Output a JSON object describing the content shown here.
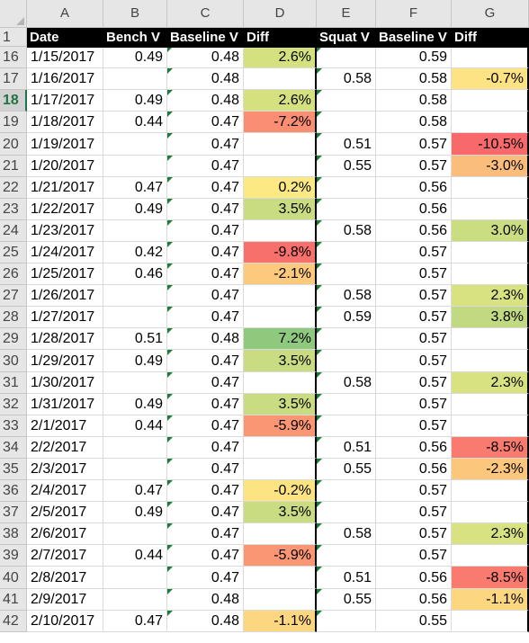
{
  "columns": [
    "A",
    "B",
    "C",
    "D",
    "E",
    "F",
    "G"
  ],
  "header_row": {
    "row_number": "1",
    "labels": [
      "Date",
      "Bench V",
      "Baseline V",
      "Diff",
      "Squat V",
      "Baseline V",
      "Diff"
    ]
  },
  "selected_row": "18",
  "rows": [
    {
      "n": "16",
      "date": "1/15/2017",
      "bench": "0.49",
      "base1": "0.48",
      "diff1": "2.6%",
      "squat": "",
      "base2": "0.59",
      "diff2": "",
      "c1": "#d5e17f",
      "c2": ""
    },
    {
      "n": "17",
      "date": "1/16/2017",
      "bench": "",
      "base1": "0.48",
      "diff1": "",
      "squat": "0.58",
      "base2": "0.58",
      "diff2": "-0.7%",
      "c1": "",
      "c2": "#fde383"
    },
    {
      "n": "18",
      "date": "1/17/2017",
      "bench": "0.49",
      "base1": "0.48",
      "diff1": "2.6%",
      "squat": "",
      "base2": "0.58",
      "diff2": "",
      "c1": "#d5e17f",
      "c2": ""
    },
    {
      "n": "19",
      "date": "1/18/2017",
      "bench": "0.44",
      "base1": "0.47",
      "diff1": "-7.2%",
      "squat": "",
      "base2": "0.58",
      "diff2": "",
      "c1": "#f98e72",
      "c2": ""
    },
    {
      "n": "20",
      "date": "1/19/2017",
      "bench": "",
      "base1": "0.47",
      "diff1": "",
      "squat": "0.51",
      "base2": "0.57",
      "diff2": "-10.5%",
      "c1": "",
      "c2": "#f8696b"
    },
    {
      "n": "21",
      "date": "1/20/2017",
      "bench": "",
      "base1": "0.47",
      "diff1": "",
      "squat": "0.55",
      "base2": "0.57",
      "diff2": "-3.0%",
      "c1": "",
      "c2": "#fbbd7b"
    },
    {
      "n": "22",
      "date": "1/21/2017",
      "bench": "0.47",
      "base1": "0.47",
      "diff1": "0.2%",
      "squat": "",
      "base2": "0.56",
      "diff2": "",
      "c1": "#fce983",
      "c2": ""
    },
    {
      "n": "23",
      "date": "1/22/2017",
      "bench": "0.49",
      "base1": "0.47",
      "diff1": "3.5%",
      "squat": "",
      "base2": "0.56",
      "diff2": "",
      "c1": "#c9dc81",
      "c2": ""
    },
    {
      "n": "24",
      "date": "1/23/2017",
      "bench": "",
      "base1": "0.47",
      "diff1": "",
      "squat": "0.58",
      "base2": "0.56",
      "diff2": "3.0%",
      "c1": "",
      "c2": "#cbdd81"
    },
    {
      "n": "25",
      "date": "1/24/2017",
      "bench": "0.42",
      "base1": "0.47",
      "diff1": "-9.8%",
      "squat": "",
      "base2": "0.57",
      "diff2": "",
      "c1": "#f8706c",
      "c2": ""
    },
    {
      "n": "26",
      "date": "1/25/2017",
      "bench": "0.46",
      "base1": "0.47",
      "diff1": "-2.1%",
      "squat": "",
      "base2": "0.57",
      "diff2": "",
      "c1": "#fdc97d",
      "c2": ""
    },
    {
      "n": "27",
      "date": "1/26/2017",
      "bench": "",
      "base1": "0.47",
      "diff1": "",
      "squat": "0.58",
      "base2": "0.57",
      "diff2": "2.3%",
      "c1": "",
      "c2": "#d8e281"
    },
    {
      "n": "28",
      "date": "1/27/2017",
      "bench": "",
      "base1": "0.47",
      "diff1": "",
      "squat": "0.59",
      "base2": "0.57",
      "diff2": "3.8%",
      "c1": "",
      "c2": "#c1d980"
    },
    {
      "n": "29",
      "date": "1/28/2017",
      "bench": "0.51",
      "base1": "0.48",
      "diff1": "7.2%",
      "squat": "",
      "base2": "0.57",
      "diff2": "",
      "c1": "#8ec97d",
      "c2": ""
    },
    {
      "n": "30",
      "date": "1/29/2017",
      "bench": "0.49",
      "base1": "0.47",
      "diff1": "3.5%",
      "squat": "",
      "base2": "0.57",
      "diff2": "",
      "c1": "#c9dc81",
      "c2": ""
    },
    {
      "n": "31",
      "date": "1/30/2017",
      "bench": "",
      "base1": "0.47",
      "diff1": "",
      "squat": "0.58",
      "base2": "0.57",
      "diff2": "2.3%",
      "c1": "",
      "c2": "#d8e281"
    },
    {
      "n": "32",
      "date": "1/31/2017",
      "bench": "0.49",
      "base1": "0.47",
      "diff1": "3.5%",
      "squat": "",
      "base2": "0.57",
      "diff2": "",
      "c1": "#c9dc81",
      "c2": ""
    },
    {
      "n": "33",
      "date": "2/1/2017",
      "bench": "0.44",
      "base1": "0.47",
      "diff1": "-5.9%",
      "squat": "",
      "base2": "0.57",
      "diff2": "",
      "c1": "#fa9673",
      "c2": ""
    },
    {
      "n": "34",
      "date": "2/2/2017",
      "bench": "",
      "base1": "0.47",
      "diff1": "",
      "squat": "0.51",
      "base2": "0.56",
      "diff2": "-8.5%",
      "c1": "",
      "c2": "#f97a6e"
    },
    {
      "n": "35",
      "date": "2/3/2017",
      "bench": "",
      "base1": "0.47",
      "diff1": "",
      "squat": "0.55",
      "base2": "0.56",
      "diff2": "-2.3%",
      "c1": "",
      "c2": "#fcc77c"
    },
    {
      "n": "36",
      "date": "2/4/2017",
      "bench": "0.47",
      "base1": "0.47",
      "diff1": "-0.2%",
      "squat": "",
      "base2": "0.57",
      "diff2": "",
      "c1": "#fde482",
      "c2": ""
    },
    {
      "n": "37",
      "date": "2/5/2017",
      "bench": "0.49",
      "base1": "0.47",
      "diff1": "3.5%",
      "squat": "",
      "base2": "0.57",
      "diff2": "",
      "c1": "#c9dc81",
      "c2": ""
    },
    {
      "n": "38",
      "date": "2/6/2017",
      "bench": "",
      "base1": "0.47",
      "diff1": "",
      "squat": "0.58",
      "base2": "0.57",
      "diff2": "2.3%",
      "c1": "",
      "c2": "#d8e281"
    },
    {
      "n": "39",
      "date": "2/7/2017",
      "bench": "0.44",
      "base1": "0.47",
      "diff1": "-5.9%",
      "squat": "",
      "base2": "0.57",
      "diff2": "",
      "c1": "#fa9673",
      "c2": ""
    },
    {
      "n": "40",
      "date": "2/8/2017",
      "bench": "",
      "base1": "0.47",
      "diff1": "",
      "squat": "0.51",
      "base2": "0.56",
      "diff2": "-8.5%",
      "c1": "",
      "c2": "#f97a6e"
    },
    {
      "n": "41",
      "date": "2/9/2017",
      "bench": "",
      "base1": "0.48",
      "diff1": "",
      "squat": "0.55",
      "base2": "0.56",
      "diff2": "-1.1%",
      "c1": "",
      "c2": "#fdd680"
    },
    {
      "n": "42",
      "date": "2/10/2017",
      "bench": "0.47",
      "base1": "0.48",
      "diff1": "-1.1%",
      "squat": "",
      "base2": "0.55",
      "diff2": "",
      "c1": "#fdd680",
      "c2": ""
    }
  ]
}
